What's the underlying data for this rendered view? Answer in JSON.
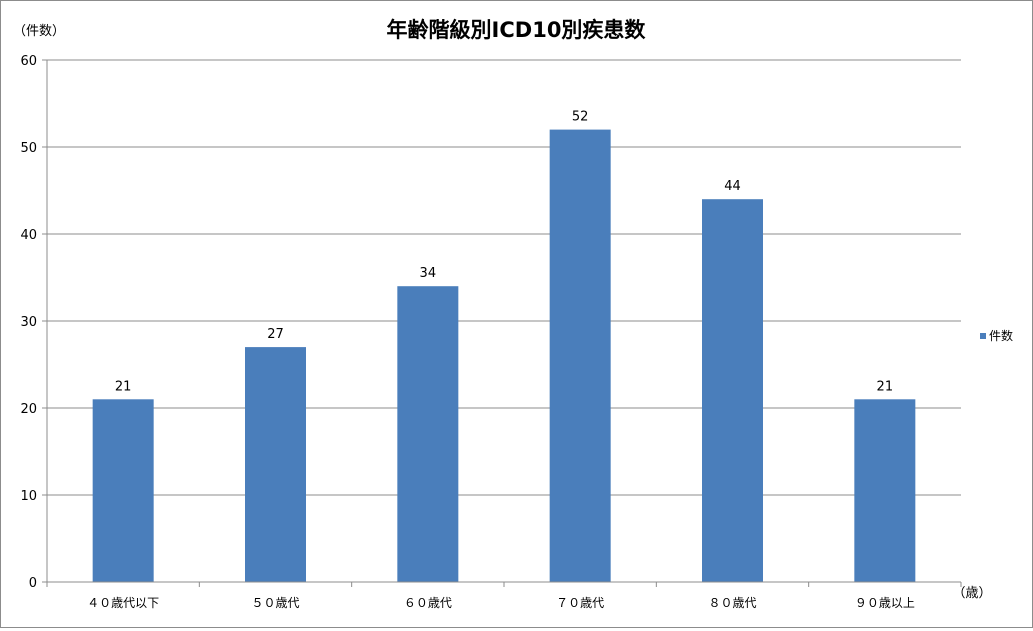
{
  "chart_data": {
    "type": "bar",
    "title": "年齢階級別ICD10別疾患数",
    "ylabel": "（件数）",
    "xlabel": "（歳）",
    "categories": [
      "４０歳代以下",
      "５０歳代",
      "６０歳代",
      "７０歳代",
      "８０歳代",
      "９０歳以上"
    ],
    "series": [
      {
        "name": "件数",
        "values": [
          21,
          27,
          34,
          52,
          44,
          21
        ],
        "color": "#4a7ebb"
      }
    ],
    "ylim": [
      0,
      60
    ],
    "yticks": [
      0,
      10,
      20,
      30,
      40,
      50,
      60
    ],
    "grid": true,
    "data_labels": true,
    "legend": "right"
  }
}
